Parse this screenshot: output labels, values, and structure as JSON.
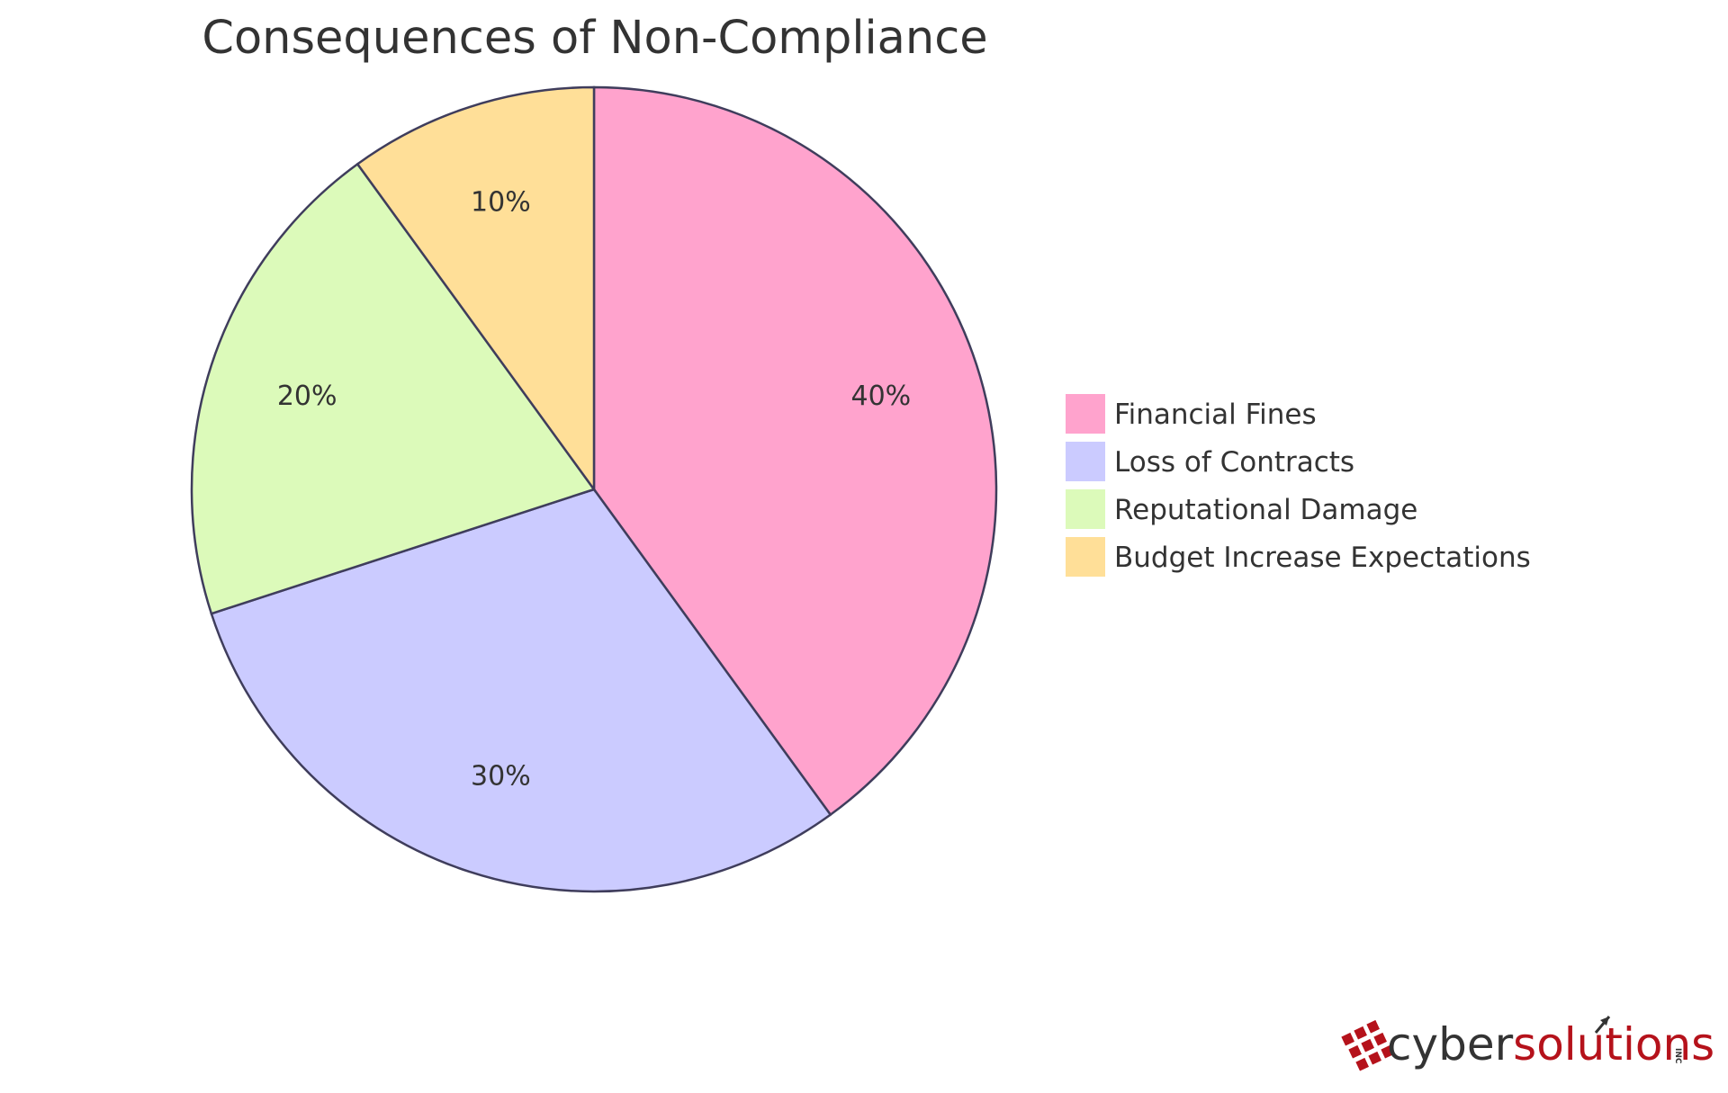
{
  "chart_data": {
    "type": "pie",
    "title": "Consequences of Non-Compliance",
    "categories": [
      "Financial Fines",
      "Loss of Contracts",
      "Reputational Damage",
      "Budget Increase Expectations"
    ],
    "values": [
      40,
      30,
      20,
      10
    ],
    "value_labels": [
      "40%",
      "30%",
      "20%",
      "10%"
    ],
    "colors": [
      "#ffa3cd",
      "#cbcbff",
      "#dcfaba",
      "#ffdf98"
    ],
    "legend_placement": "right",
    "start_angle": "12 o'clock",
    "direction": "clockwise"
  },
  "logo": {
    "part1": "cyber",
    "part2": "solutions",
    "suffix": "INC",
    "color1": "#333333",
    "color2": "#b5121b"
  }
}
